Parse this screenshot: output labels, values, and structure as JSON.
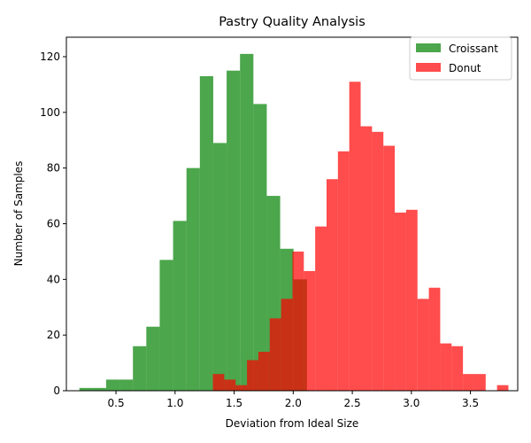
{
  "chart_data": {
    "type": "histogram",
    "title": "Pastry Quality Analysis",
    "xlabel": "Deviation from Ideal Size",
    "ylabel": "Number of Samples",
    "xlim": [
      0.08,
      3.9
    ],
    "ylim": [
      0,
      127
    ],
    "xticks": [
      0.5,
      1.0,
      1.5,
      2.0,
      2.5,
      3.0,
      3.5
    ],
    "xtick_labels": [
      "0.5",
      "1.0",
      "1.5",
      "2.0",
      "2.5",
      "3.0",
      "3.5"
    ],
    "yticks": [
      0,
      20,
      40,
      60,
      80,
      100,
      120
    ],
    "ytick_labels": [
      "0",
      "20",
      "40",
      "60",
      "80",
      "100",
      "120"
    ],
    "legend_position": "top-right",
    "series": [
      {
        "name": "Croissant",
        "color": "#008000",
        "opacity": 0.7,
        "bin_start": 0.19,
        "bin_width": 0.1133,
        "counts": [
          1,
          1,
          4,
          4,
          16,
          23,
          47,
          61,
          80,
          113,
          89,
          115,
          121,
          103,
          70,
          51,
          40
        ]
      },
      {
        "name": "Donut",
        "color": "#ff0000",
        "opacity": 0.7,
        "bin_start": 1.32,
        "bin_width": 0.0962,
        "counts": [
          6,
          4,
          2,
          11,
          14,
          26,
          33,
          50,
          43,
          59,
          76,
          86,
          111,
          95,
          93,
          88,
          64,
          65,
          33,
          37,
          17,
          16,
          6,
          6,
          0,
          2
        ]
      }
    ]
  }
}
